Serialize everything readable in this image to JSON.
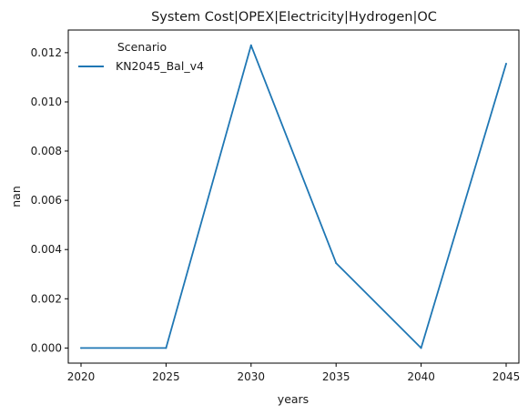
{
  "chart_data": {
    "type": "line",
    "title": "System Cost|OPEX|Electricity|Hydrogen|OC",
    "xlabel": "years",
    "ylabel": "nan",
    "x": [
      2020,
      2025,
      2030,
      2035,
      2040,
      2045
    ],
    "x_ticks": [
      "2020",
      "2025",
      "2030",
      "2035",
      "2040",
      "2045"
    ],
    "y_ticks": [
      "0.000",
      "0.002",
      "0.004",
      "0.006",
      "0.008",
      "0.010",
      "0.012"
    ],
    "xlim": [
      2019.25,
      2045.75
    ],
    "ylim": [
      -0.000615,
      0.01292
    ],
    "grid": false,
    "legend": {
      "title": "Scenario",
      "placement": "top-left"
    },
    "series": [
      {
        "name": "KN2045_Bal_v4",
        "color": "#1f77b4",
        "values": [
          0.0,
          0.0,
          0.0123,
          0.00345,
          0.0,
          0.01155
        ]
      }
    ]
  }
}
